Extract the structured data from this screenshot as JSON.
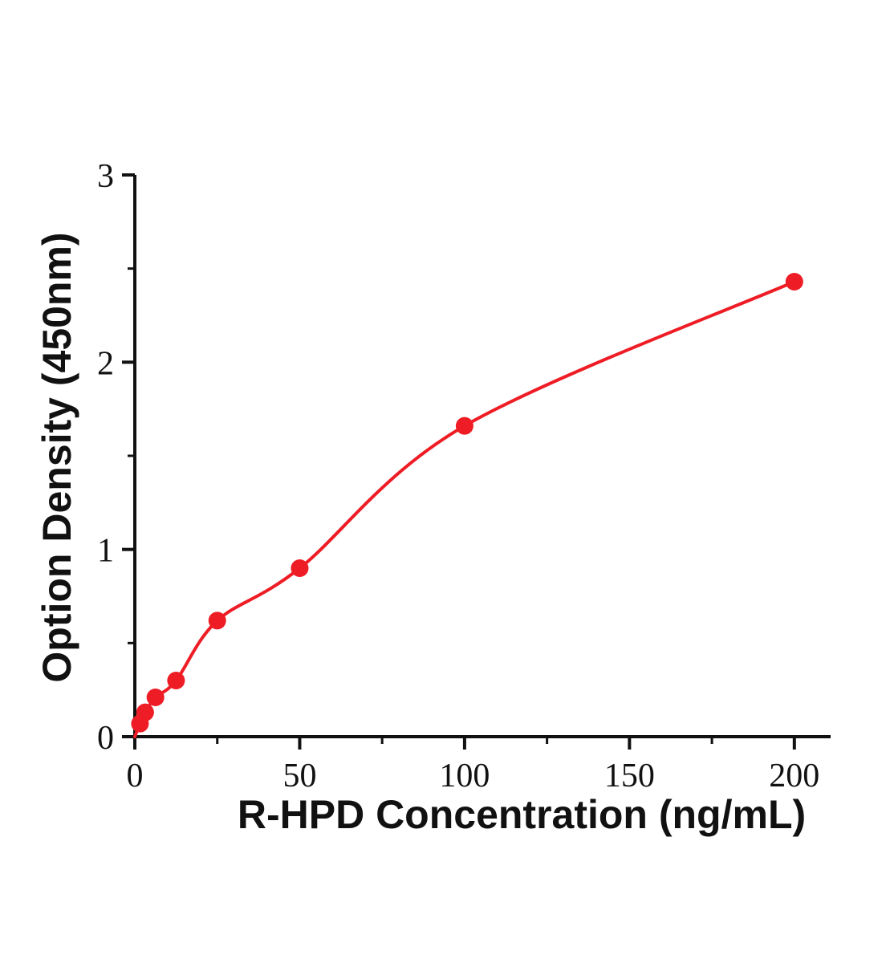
{
  "chart_data": {
    "type": "scatter",
    "title": "",
    "xlabel": "R-HPD Concentration (ng/mL)",
    "ylabel": "Option Density (450nm)",
    "x": [
      1.56,
      3.13,
      6.25,
      12.5,
      25,
      50,
      100,
      200
    ],
    "y": [
      0.07,
      0.13,
      0.21,
      0.3,
      0.62,
      0.9,
      1.66,
      2.43
    ],
    "curve_start": [
      0,
      0
    ],
    "curve_style": "smooth-through-points",
    "xlim": [
      0,
      211
    ],
    "ylim": [
      0,
      3
    ],
    "xticks": [
      0,
      50,
      100,
      150,
      200
    ],
    "yticks": [
      0,
      1,
      2,
      3
    ],
    "xminor": [
      25,
      75,
      125,
      175
    ],
    "yminor": [
      0.5,
      1.5,
      2.5
    ],
    "grid": false,
    "legend": "none",
    "point_color": "#ee1c25",
    "line_color": "#ee1c25",
    "axis_color": "#111111"
  }
}
